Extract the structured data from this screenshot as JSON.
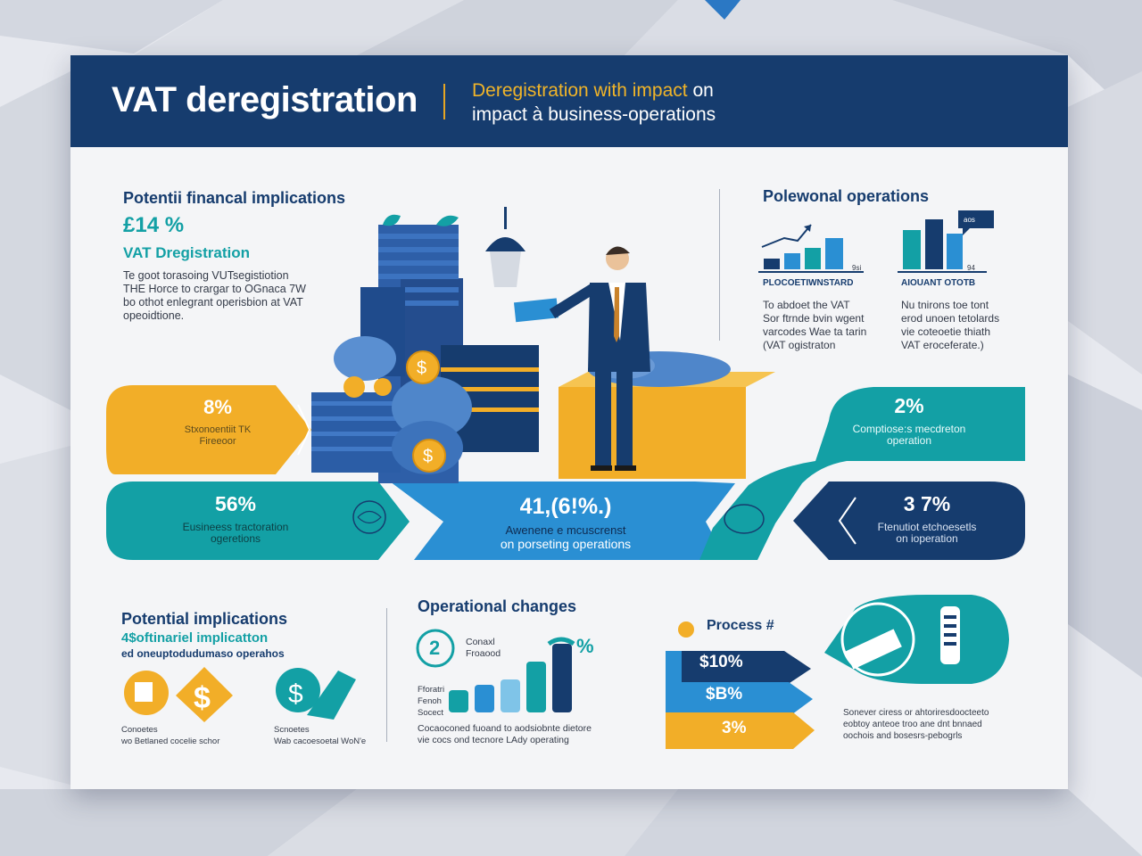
{
  "header": {
    "title": "VAT deregistration",
    "subtitle_accent": "Deregistration with impact",
    "subtitle_word": "on",
    "subtitle_line2": "impact à business-operations"
  },
  "financial": {
    "heading": "Potentii financal implications",
    "stat": "£14 %",
    "label": "VAT Dregistration",
    "body": [
      "Te goot torasoing VUTsegistiotion",
      "THE Horce to crargar to OGnaca 7W",
      "bo othot enlegrant operisbion at VAT",
      "opeoidtione."
    ]
  },
  "operations": {
    "heading": "Polewonal operations",
    "chart1_label": "PLOCOETIWNSTARD",
    "chart1_tag": "9si",
    "chart2_label": "AIOUANT OTOTB",
    "chart2_tag": "94",
    "chart2_badge": "aos",
    "col1_text": [
      "To abdoet the VAT",
      "Sor ftrnde bvin wgent",
      "varcodes Wae ta tarin",
      "(VAT ogistraton"
    ],
    "col2_text": [
      "Nu tnirons toe tont",
      "erod unoen tetolards",
      "vie coteoetie thiath",
      "VAT eroceferate.)"
    ]
  },
  "flow": {
    "a1_pct": "8%",
    "a1_text": [
      "Stxonoentiit TK",
      "Fireeoor"
    ],
    "a2_pct": "56%",
    "a2_text": [
      "Eusineess tractoration",
      "ogeretions"
    ],
    "center_pct": "41,(6!%.)",
    "center_text": [
      "Awenene e mcuscrenst",
      "on porseting operations"
    ],
    "b1_pct": "2%",
    "b1_text": [
      "Comptiose:s mecdreton",
      "operation"
    ],
    "b2_pct": "3 7%",
    "b2_text": [
      "Ftenutiot etchoesetls",
      "on ioperation"
    ]
  },
  "implications": {
    "heading": "Potential implications",
    "sub": "4$oftinariel implicatton",
    "sub2": "ed oneuptodudumaso operahos",
    "cap1": [
      "Conoetes",
      "wo Betlaned cocelie schor"
    ],
    "cap2": [
      "Scnoetes",
      "Wab cacoesoetal WoN'e"
    ]
  },
  "changes": {
    "heading": "Operational changes",
    "badge": "2",
    "badge_text": [
      "Conaxl",
      "Froaood"
    ],
    "pct": "%",
    "axis_text": [
      "Fforatri",
      "Fenoh",
      "Socect"
    ],
    "caption": [
      "Cocaoconed fuoand to aodsiobnte dietore",
      "vie cocs ond tecnore LAdy operating"
    ]
  },
  "process": {
    "heading": "Process #",
    "items": [
      "$10%",
      "$B%",
      "3%"
    ],
    "caption": [
      "Sonever ciress or ahtoriresdoocteeto",
      "eobtoy anteoe troo ane dnt bnnaed",
      "oochois and bosesrs-pebogrls"
    ]
  },
  "colors": {
    "navy": "#163c6e",
    "teal": "#13a0a5",
    "blue": "#2a8fd3",
    "yellow": "#f2ae28"
  }
}
